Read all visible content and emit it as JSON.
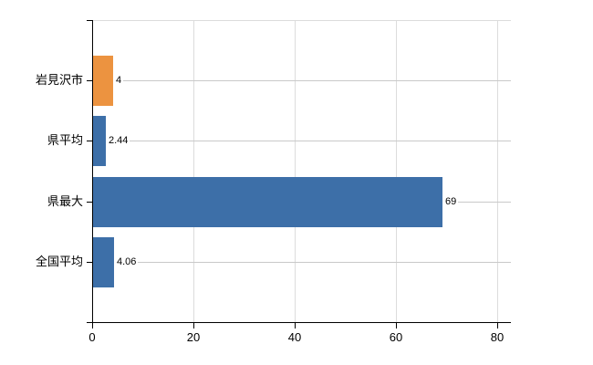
{
  "chart_data": {
    "type": "bar",
    "orientation": "horizontal",
    "title": "",
    "xlabel": "",
    "ylabel": "",
    "categories": [
      "岩見沢市",
      "県平均",
      "県最大",
      "全国平均"
    ],
    "values": [
      4,
      2.44,
      69,
      4.06
    ],
    "value_labels": [
      "4",
      "2.44",
      "69",
      "4.06"
    ],
    "bar_colors": [
      "#ec9340",
      "#3d6fa8",
      "#3d6fa8",
      "#3d6fa8"
    ],
    "xlim": [
      0,
      80
    ],
    "x_ticks": [
      0,
      20,
      40,
      60,
      80
    ],
    "x_tick_labels": [
      "0",
      "20",
      "40",
      "60",
      "80"
    ],
    "grid": true,
    "legend_position": "none",
    "colors": {
      "bar_orange": "#ec9340",
      "bar_blue": "#3d6fa8",
      "axis": "#000000",
      "gridline_vertical": "#dcdcdc",
      "gridline_row": "#c9c9c9",
      "background": "#ffffff",
      "text": "#000000"
    }
  }
}
